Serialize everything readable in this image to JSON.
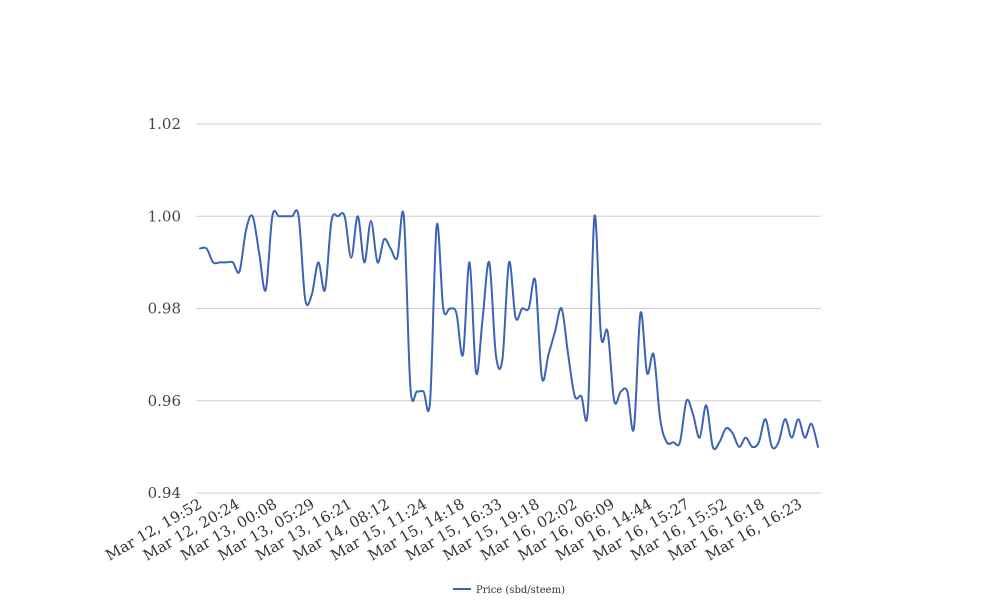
{
  "chart_data": {
    "type": "line",
    "title": "",
    "xlabel": "",
    "ylabel": "",
    "ylim": [
      0.94,
      1.02
    ],
    "y_ticks": [
      "0.94",
      "0.96",
      "0.98",
      "1.00",
      "1.02"
    ],
    "x_tick_labels": [
      "Mar 12, 19:52",
      "Mar 12, 20:24",
      "Mar 13, 00:08",
      "Mar 13, 05:29",
      "Mar 13, 16:21",
      "Mar 14, 08:12",
      "Mar 15, 11:24",
      "Mar 15, 14:18",
      "Mar 15, 16:33",
      "Mar 15, 19:18",
      "Mar 16, 02:02",
      "Mar 16, 06:09",
      "Mar 16, 14:44",
      "Mar 16, 15:27",
      "Mar 16, 15:52",
      "Mar 16, 16:18",
      "Mar 16, 16:23"
    ],
    "grid": true,
    "legend_position": "bottom",
    "series": [
      {
        "name": "Price (sbd/steem)",
        "color": "#3c63b5",
        "values": [
          0.993,
          0.993,
          0.99,
          0.99,
          0.99,
          0.99,
          0.988,
          0.997,
          1.0,
          0.992,
          0.984,
          1.0,
          1.0,
          1.0,
          1.0,
          1.0,
          0.982,
          0.983,
          0.99,
          0.984,
          0.999,
          1.0,
          1.0,
          0.991,
          1.0,
          0.99,
          0.999,
          0.99,
          0.995,
          0.993,
          0.991,
          1.0,
          0.963,
          0.962,
          0.962,
          0.96,
          0.998,
          0.98,
          0.98,
          0.979,
          0.97,
          0.99,
          0.966,
          0.978,
          0.99,
          0.97,
          0.969,
          0.99,
          0.978,
          0.98,
          0.98,
          0.986,
          0.965,
          0.97,
          0.975,
          0.98,
          0.97,
          0.961,
          0.961,
          0.958,
          1.0,
          0.974,
          0.975,
          0.96,
          0.962,
          0.962,
          0.954,
          0.979,
          0.966,
          0.97,
          0.956,
          0.951,
          0.951,
          0.951,
          0.96,
          0.957,
          0.952,
          0.959,
          0.95,
          0.951,
          0.954,
          0.953,
          0.95,
          0.952,
          0.95,
          0.951,
          0.956,
          0.95,
          0.951,
          0.956,
          0.952,
          0.956,
          0.952,
          0.955,
          0.95
        ]
      }
    ]
  }
}
